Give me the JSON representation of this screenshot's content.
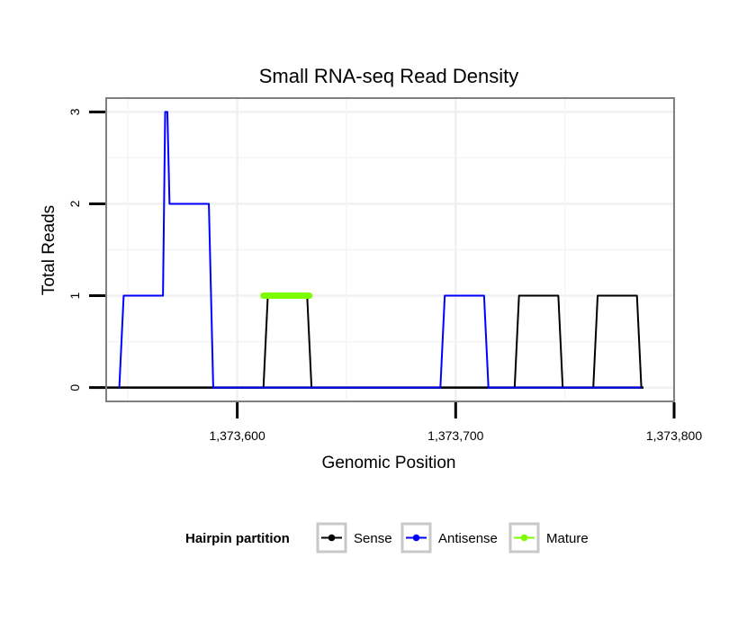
{
  "chart_data": {
    "type": "line",
    "title": "Small RNA-seq Read Density",
    "xlabel": "Genomic Position",
    "ylabel": "Total Reads",
    "xlim": [
      1373540,
      1373800
    ],
    "ylim": [
      -0.15,
      3.15
    ],
    "x_ticks": [
      1373600,
      1373700,
      1373800
    ],
    "x_tick_labels": [
      "1,373,600",
      "1,373,700",
      "1,373,800"
    ],
    "y_ticks": [
      0,
      1,
      2,
      3
    ],
    "y_tick_labels": [
      "0",
      "1",
      "2",
      "3"
    ],
    "grid": true,
    "legend": {
      "title": "Hairpin partition",
      "position": "bottom",
      "entries": [
        {
          "name": "Sense",
          "color": "#000000"
        },
        {
          "name": "Antisense",
          "color": "#0000ff"
        },
        {
          "name": "Mature",
          "color": "#7cfc00"
        }
      ]
    },
    "series": [
      {
        "name": "Sense",
        "color": "#000000",
        "x": [
          1373552,
          1373612,
          1373614,
          1373632,
          1373634,
          1373727,
          1373729,
          1373747,
          1373749,
          1373763,
          1373765,
          1373783,
          1373785
        ],
        "y": [
          0,
          0,
          1,
          1,
          0,
          0,
          1,
          1,
          0,
          0,
          1,
          1,
          0
        ]
      },
      {
        "name": "Antisense",
        "color": "#0000ff",
        "x": [
          1373546,
          1373548,
          1373566,
          1373567,
          1373568,
          1373569,
          1373587,
          1373589,
          1373693,
          1373695,
          1373713,
          1373715,
          1373785
        ],
        "y": [
          0,
          1,
          1,
          3,
          3,
          2,
          2,
          0,
          0,
          1,
          1,
          0,
          0
        ]
      },
      {
        "name": "Mature",
        "color": "#7cfc00",
        "x": [
          1373612,
          1373633
        ],
        "y": [
          1,
          1
        ]
      }
    ],
    "baseline": {
      "from": 1373540,
      "to": 1373786,
      "y": 0
    }
  }
}
